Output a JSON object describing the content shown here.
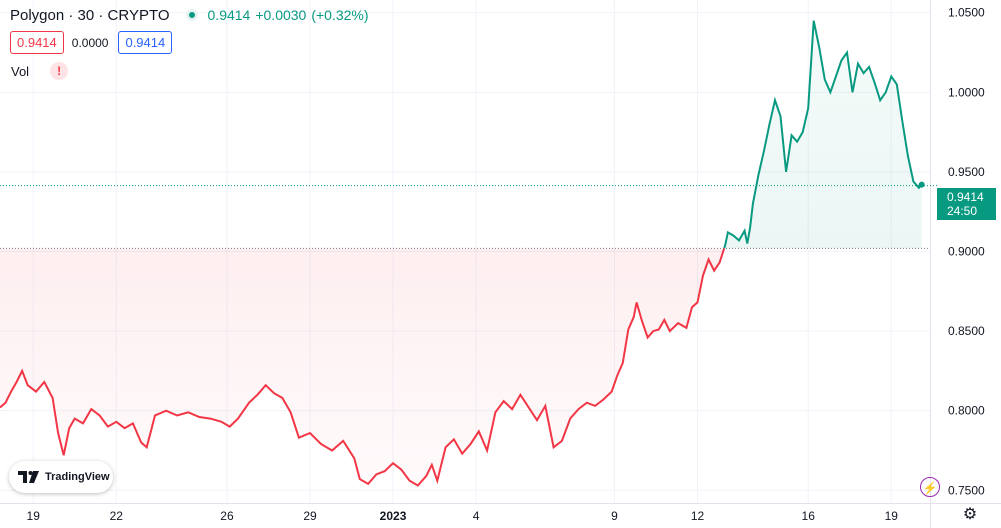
{
  "header": {
    "symbol": "Polygon · 30 · CRYPTO",
    "last": "0.9414",
    "change": "+0.0030",
    "change_pct": "(+0.32%)"
  },
  "quote": {
    "bid": "0.9414",
    "spread": "0.0000",
    "ask": "0.9414"
  },
  "indicator": {
    "vol_label": "Vol",
    "warn_glyph": "!"
  },
  "price_tag": {
    "price": "0.9414",
    "countdown": "24:50"
  },
  "branding": {
    "logo_text": "TradingView"
  },
  "colors": {
    "up": "#089981",
    "down": "#f23645",
    "grid": "#f0f3fa"
  },
  "chart_data": {
    "type": "area",
    "baseline": 0.902,
    "last_price": 0.9414,
    "ylim": [
      0.742,
      1.058
    ],
    "y_ticks": [
      "0.7500",
      "0.8000",
      "0.8500",
      "0.9000",
      "0.9500",
      "1.0000",
      "1.0500"
    ],
    "y_tick_values": [
      0.75,
      0.8,
      0.85,
      0.9,
      0.95,
      1.0,
      1.05
    ],
    "x_ticks": [
      {
        "label": "19",
        "t": 1.2
      },
      {
        "label": "22",
        "t": 4.2
      },
      {
        "label": "26",
        "t": 8.2
      },
      {
        "label": "29",
        "t": 11.2
      },
      {
        "label": "2023",
        "t": 14.2,
        "bold": true
      },
      {
        "label": "4",
        "t": 17.2
      },
      {
        "label": "9",
        "t": 22.2
      },
      {
        "label": "12",
        "t": 25.2
      },
      {
        "label": "16",
        "t": 29.2
      },
      {
        "label": "19",
        "t": 32.2
      }
    ],
    "xlim": [
      0,
      33.6
    ],
    "series": [
      {
        "t": [
          0,
          0.2,
          0.4,
          0.6,
          0.8,
          1.0,
          1.3,
          1.6,
          1.9,
          2.1,
          2.3,
          2.5,
          2.7,
          3.0,
          3.3,
          3.6,
          3.9,
          4.2,
          4.5,
          4.8,
          5.1,
          5.3,
          5.6,
          6.0,
          6.4,
          6.8,
          7.2,
          7.6,
          8.0,
          8.3,
          8.6,
          9.0,
          9.3,
          9.6,
          9.9,
          10.2,
          10.5,
          10.8,
          11.2,
          11.6,
          12.0,
          12.4,
          12.8,
          13.0,
          13.3,
          13.6,
          13.9,
          14.2,
          14.5,
          14.8,
          15.1,
          15.4,
          15.6,
          15.8,
          16.1,
          16.4,
          16.7,
          17.0,
          17.3,
          17.6,
          17.9,
          18.2,
          18.5,
          18.8,
          19.1,
          19.4,
          19.7,
          20.0,
          20.3,
          20.6,
          20.9,
          21.2,
          21.5,
          21.8,
          22.1,
          22.3,
          22.5,
          22.7,
          22.9,
          23.0,
          23.2,
          23.4,
          23.6,
          23.8,
          24.0,
          24.2,
          24.5,
          24.8,
          25.0,
          25.2,
          25.4,
          25.6,
          25.8,
          26.0,
          26.2,
          26.3,
          26.5,
          26.7,
          26.9,
          27.0,
          27.1,
          27.2,
          27.4,
          27.6,
          27.8,
          28.0,
          28.2,
          28.4,
          28.6,
          28.8,
          29.0,
          29.2,
          29.4,
          29.6,
          29.8,
          30.0,
          30.2,
          30.4,
          30.6,
          30.8,
          31.0,
          31.2,
          31.4,
          31.6,
          31.8,
          32.0,
          32.2,
          32.4,
          32.6,
          32.8,
          33.0,
          33.2,
          33.3
        ],
        "values": [
          0.802,
          0.805,
          0.812,
          0.818,
          0.825,
          0.816,
          0.812,
          0.818,
          0.808,
          0.786,
          0.772,
          0.789,
          0.795,
          0.792,
          0.801,
          0.797,
          0.79,
          0.793,
          0.789,
          0.792,
          0.78,
          0.777,
          0.797,
          0.8,
          0.797,
          0.799,
          0.796,
          0.795,
          0.793,
          0.79,
          0.795,
          0.805,
          0.81,
          0.816,
          0.811,
          0.808,
          0.799,
          0.783,
          0.786,
          0.779,
          0.775,
          0.781,
          0.77,
          0.757,
          0.754,
          0.76,
          0.762,
          0.767,
          0.763,
          0.756,
          0.753,
          0.759,
          0.766,
          0.756,
          0.777,
          0.782,
          0.773,
          0.779,
          0.787,
          0.775,
          0.799,
          0.806,
          0.801,
          0.81,
          0.802,
          0.794,
          0.803,
          0.777,
          0.781,
          0.795,
          0.801,
          0.805,
          0.803,
          0.807,
          0.812,
          0.822,
          0.83,
          0.851,
          0.859,
          0.868,
          0.856,
          0.846,
          0.85,
          0.851,
          0.857,
          0.85,
          0.855,
          0.852,
          0.865,
          0.868,
          0.885,
          0.895,
          0.888,
          0.893,
          0.904,
          0.912,
          0.91,
          0.907,
          0.913,
          0.905,
          0.915,
          0.93,
          0.948,
          0.963,
          0.98,
          0.995,
          0.985,
          0.95,
          0.973,
          0.969,
          0.975,
          0.99,
          1.045,
          1.028,
          1.008,
          1.0,
          1.01,
          1.02,
          1.025,
          1.0,
          1.018,
          1.012,
          1.016,
          1.006,
          0.995,
          1.0,
          1.01,
          1.005,
          0.982,
          0.96,
          0.944,
          0.94,
          0.942
        ]
      }
    ]
  }
}
